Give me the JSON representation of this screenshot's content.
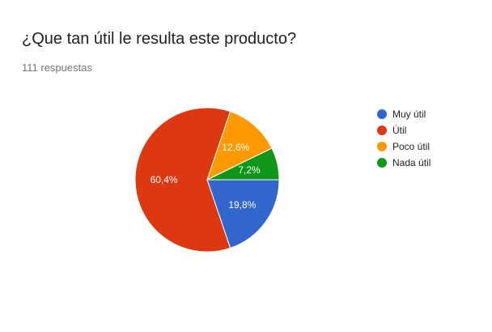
{
  "header": {
    "title": "¿Que tan útil le resulta este producto?",
    "responses": "111 respuestas"
  },
  "chart_data": {
    "type": "pie",
    "title": "¿Que tan útil le resulta este producto?",
    "categories": [
      "Muy útil",
      "Útil",
      "Poco útil",
      "Nada útil"
    ],
    "values": [
      19.8,
      60.4,
      12.6,
      7.2
    ],
    "labels": [
      "19,8%",
      "60,4%",
      "12,6%",
      "7,2%"
    ],
    "colors": [
      "#3366cc",
      "#dc3912",
      "#ff9900",
      "#109618"
    ],
    "legend_position": "right"
  }
}
